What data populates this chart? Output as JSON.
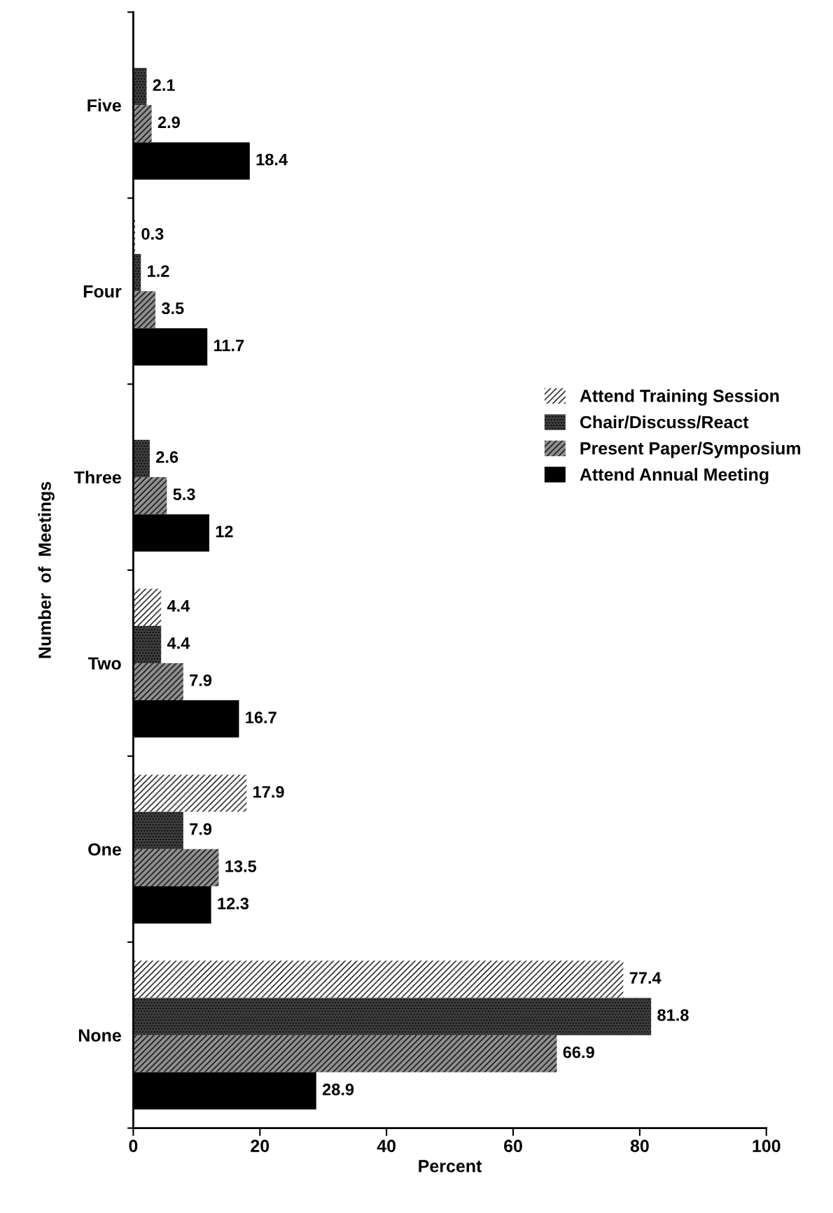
{
  "chart_data": {
    "type": "bar",
    "orientation": "horizontal",
    "xlabel": "Percent",
    "ylabel": "Number  of  Meetings",
    "categories": [
      "Five",
      "Four",
      "Three",
      "Two",
      "One",
      "None"
    ],
    "series": [
      {
        "name": "Attend Training Session",
        "color": "#ffffff",
        "values": [
          null,
          0.3,
          null,
          4.4,
          17.9,
          77.4
        ]
      },
      {
        "name": "Chair/Discuss/React",
        "color": "#404040",
        "values": [
          2.1,
          1.2,
          2.6,
          4.4,
          7.9,
          81.8
        ]
      },
      {
        "name": "Present Paper/Symposium",
        "color": "#909090",
        "values": [
          2.9,
          3.5,
          5.3,
          7.9,
          13.5,
          66.9
        ]
      },
      {
        "name": "Attend Annual Meeting",
        "color": "#000000",
        "values": [
          18.4,
          11.7,
          12,
          16.7,
          12.3,
          28.9
        ]
      }
    ],
    "xlim": [
      0,
      100
    ],
    "xticks": [
      0,
      20,
      40,
      60,
      80,
      100
    ],
    "data_labels": true,
    "legend": "right",
    "grid": false
  }
}
